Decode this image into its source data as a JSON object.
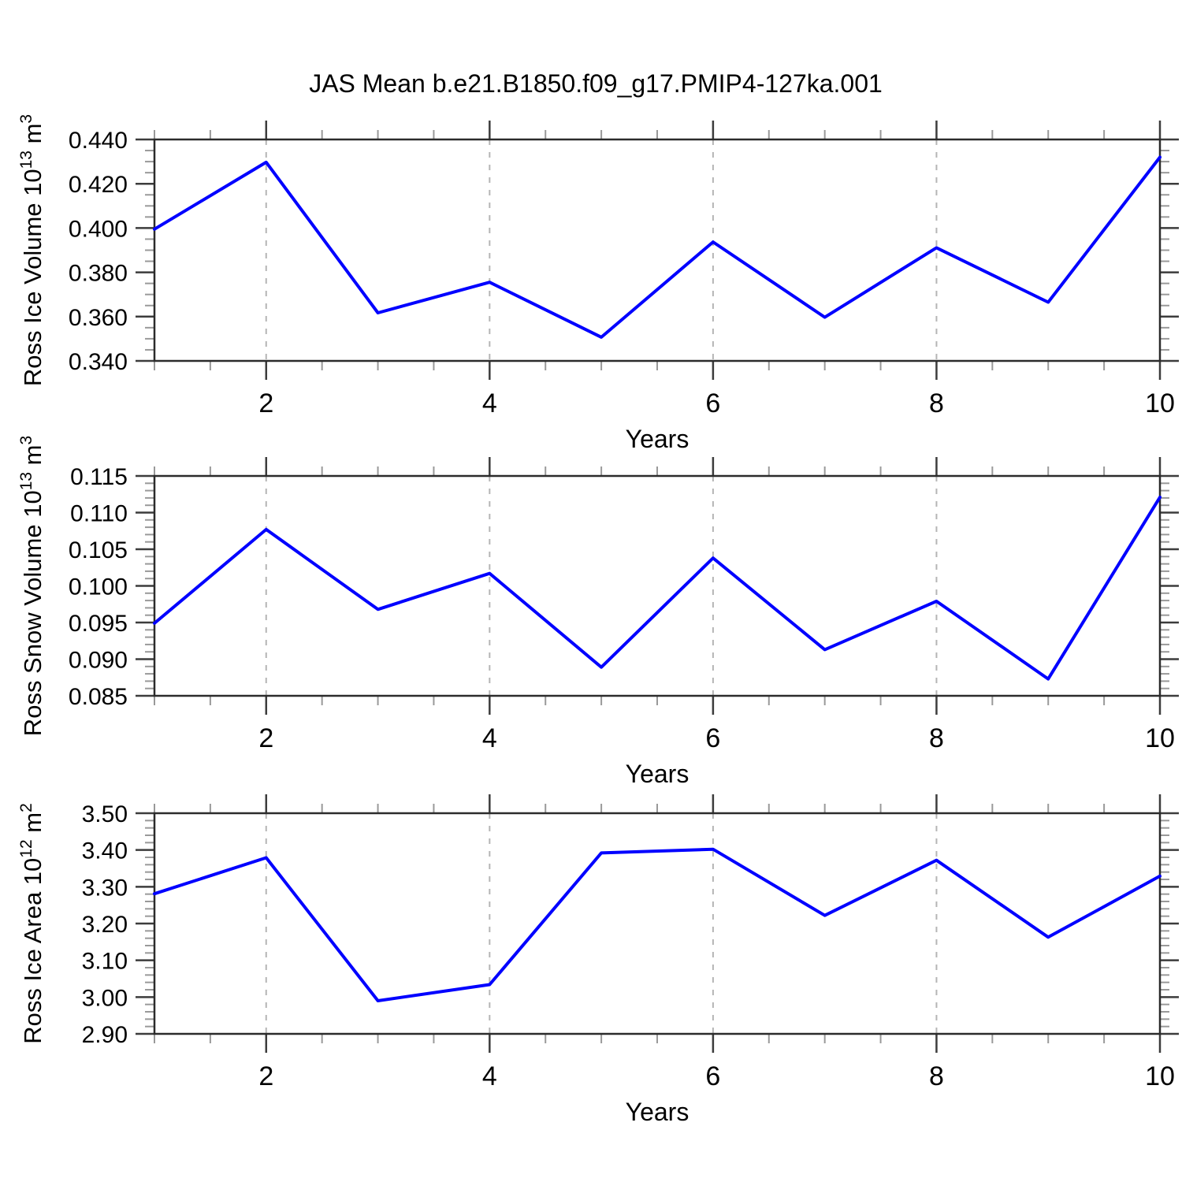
{
  "title": "JAS Mean b.e21.B1850.f09_g17.PMIP4-127ka.001",
  "style": {
    "line_color": "#0000ff",
    "frame_color": "#2b2b2b",
    "major_tick_color": "#3c3c3c",
    "minor_tick_color": "#999999",
    "gridline_color": "#b5b5b5",
    "text_color": "#000000"
  },
  "chart_data": [
    {
      "id": "ross-ice-volume",
      "type": "line",
      "xlabel": "Years",
      "ylabel_segments": [
        {
          "t": "Ross Ice Volume 10"
        },
        {
          "t": "13",
          "sup": true
        },
        {
          "t": " m"
        },
        {
          "t": "3",
          "sup": true
        }
      ],
      "x": [
        1,
        2,
        3,
        4,
        5,
        6,
        7,
        8,
        9,
        10
      ],
      "values": [
        0.3995,
        0.4297,
        0.3617,
        0.3755,
        0.3507,
        0.3937,
        0.3597,
        0.3911,
        0.3665,
        0.432
      ],
      "xlim": [
        1,
        10
      ],
      "ylim": [
        0.34,
        0.44
      ],
      "yticks": [
        {
          "v": 0.34,
          "label": "0.340"
        },
        {
          "v": 0.36,
          "label": "0.360"
        },
        {
          "v": 0.38,
          "label": "0.380"
        },
        {
          "v": 0.4,
          "label": "0.400"
        },
        {
          "v": 0.42,
          "label": "0.420"
        },
        {
          "v": 0.44,
          "label": "0.440"
        }
      ],
      "ytick_minor_step": 0.005,
      "xticks_major": [
        {
          "v": 2,
          "label": "2"
        },
        {
          "v": 4,
          "label": "4"
        },
        {
          "v": 6,
          "label": "6"
        },
        {
          "v": 8,
          "label": "8"
        },
        {
          "v": 10,
          "label": "10"
        }
      ],
      "xtick_minor_step": 0.5,
      "gridlines_x": [
        2,
        4,
        6,
        8
      ],
      "grid": "vertical-dashed",
      "legend": "none"
    },
    {
      "id": "ross-snow-volume",
      "type": "line",
      "xlabel": "Years",
      "ylabel_segments": [
        {
          "t": "Ross Snow Volume 10"
        },
        {
          "t": "13",
          "sup": true
        },
        {
          "t": " m"
        },
        {
          "t": "3",
          "sup": true
        }
      ],
      "x": [
        1,
        2,
        3,
        4,
        5,
        6,
        7,
        8,
        9,
        10
      ],
      "values": [
        0.0949,
        0.1077,
        0.0968,
        0.1017,
        0.0889,
        0.1038,
        0.0913,
        0.0979,
        0.0873,
        0.1121
      ],
      "xlim": [
        1,
        10
      ],
      "ylim": [
        0.085,
        0.115
      ],
      "yticks": [
        {
          "v": 0.085,
          "label": "0.085"
        },
        {
          "v": 0.09,
          "label": "0.090"
        },
        {
          "v": 0.095,
          "label": "0.095"
        },
        {
          "v": 0.1,
          "label": "0.100"
        },
        {
          "v": 0.105,
          "label": "0.105"
        },
        {
          "v": 0.11,
          "label": "0.110"
        },
        {
          "v": 0.115,
          "label": "0.115"
        }
      ],
      "ytick_minor_step": 0.001,
      "xticks_major": [
        {
          "v": 2,
          "label": "2"
        },
        {
          "v": 4,
          "label": "4"
        },
        {
          "v": 6,
          "label": "6"
        },
        {
          "v": 8,
          "label": "8"
        },
        {
          "v": 10,
          "label": "10"
        }
      ],
      "xtick_minor_step": 0.5,
      "gridlines_x": [
        2,
        4,
        6,
        8
      ],
      "grid": "vertical-dashed",
      "legend": "none"
    },
    {
      "id": "ross-ice-area",
      "type": "line",
      "xlabel": "Years",
      "ylabel_segments": [
        {
          "t": "Ross Ice Area 10"
        },
        {
          "t": "12",
          "sup": true
        },
        {
          "t": " m"
        },
        {
          "t": "2",
          "sup": true
        }
      ],
      "x": [
        1,
        2,
        3,
        4,
        5,
        6,
        7,
        8,
        9,
        10
      ],
      "values": [
        3.281,
        3.379,
        2.99,
        3.034,
        3.392,
        3.402,
        3.222,
        3.372,
        3.163,
        3.329
      ],
      "xlim": [
        1,
        10
      ],
      "ylim": [
        2.9,
        3.5
      ],
      "yticks": [
        {
          "v": 2.9,
          "label": "2.90"
        },
        {
          "v": 3.0,
          "label": "3.00"
        },
        {
          "v": 3.1,
          "label": "3.10"
        },
        {
          "v": 3.2,
          "label": "3.20"
        },
        {
          "v": 3.3,
          "label": "3.30"
        },
        {
          "v": 3.4,
          "label": "3.40"
        },
        {
          "v": 3.5,
          "label": "3.50"
        }
      ],
      "ytick_minor_step": 0.02,
      "xticks_major": [
        {
          "v": 2,
          "label": "2"
        },
        {
          "v": 4,
          "label": "4"
        },
        {
          "v": 6,
          "label": "6"
        },
        {
          "v": 8,
          "label": "8"
        },
        {
          "v": 10,
          "label": "10"
        }
      ],
      "xtick_minor_step": 0.5,
      "gridlines_x": [
        2,
        4,
        6,
        8
      ],
      "grid": "vertical-dashed",
      "legend": "none"
    }
  ]
}
